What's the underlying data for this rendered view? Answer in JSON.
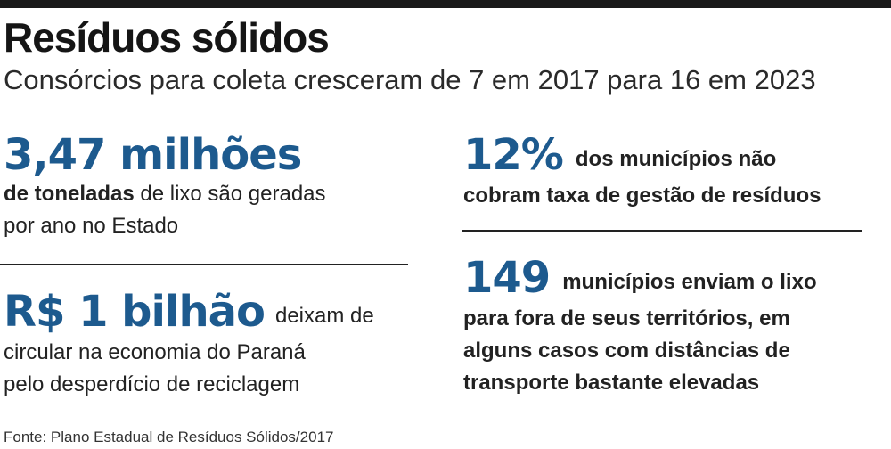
{
  "header": {
    "title": "Resíduos sólidos",
    "subtitle": "Consórcios para coleta cresceram de 7 em 2017 para 16 em 2023"
  },
  "stats": {
    "waste": {
      "value": "3,47 milhões",
      "line1_bold": "de toneladas",
      "line1_rest": " de lixo são geradas",
      "line2": "por ano no Estado"
    },
    "money": {
      "value": "R$ 1 bilhão",
      "line1_rest": "deixam de",
      "line2": "circular na economia do Paraná",
      "line3": "pelo desperdício de reciclagem"
    },
    "fee": {
      "value": "12%",
      "line1_rest": "dos municípios não",
      "line2": "cobram taxa de gestão de resíduos"
    },
    "export": {
      "value": "149",
      "line1_rest": "municípios enviam o lixo",
      "line2": "para fora de seus territórios, em",
      "line3": "alguns casos com distâncias de",
      "line4": "transporte bastante elevadas"
    }
  },
  "footer": {
    "source": "Fonte: Plano Estadual de Resíduos Sólidos/2017"
  },
  "colors": {
    "accent": "#1d5a8e",
    "text": "#222222",
    "rule": "#1a1a1a"
  }
}
